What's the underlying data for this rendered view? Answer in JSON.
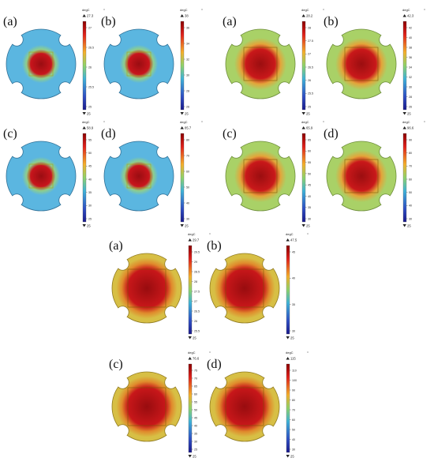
{
  "figure": {
    "unit": "degC",
    "groups": [
      {
        "id": "group-1",
        "colorScheme": "blue",
        "panels": [
          {
            "label": "(a)",
            "max": "27.3",
            "min": "25",
            "ticks": [
              "27",
              "26.5",
              "26",
              "25.5",
              "25"
            ]
          },
          {
            "label": "(b)",
            "max": "38",
            "min": "25",
            "ticks": [
              "36",
              "34",
              "32",
              "30",
              "28",
              "26"
            ]
          },
          {
            "label": "(c)",
            "max": "58.9",
            "min": "25",
            "ticks": [
              "55",
              "50",
              "45",
              "40",
              "35",
              "30",
              "25"
            ]
          },
          {
            "label": "(d)",
            "max": "85.7",
            "min": "25",
            "ticks": [
              "80",
              "70",
              "60",
              "50",
              "40",
              "30"
            ]
          }
        ]
      },
      {
        "id": "group-2",
        "colorScheme": "green",
        "panels": [
          {
            "label": "(a)",
            "max": "28.2",
            "min": "25",
            "ticks": [
              "28",
              "27.5",
              "27",
              "26.5",
              "26",
              "25.5",
              "25"
            ]
          },
          {
            "label": "(b)",
            "max": "42.3",
            "min": "25",
            "ticks": [
              "42",
              "40",
              "38",
              "36",
              "34",
              "32",
              "30",
              "28",
              "26"
            ]
          },
          {
            "label": "(c)",
            "max": "65.9",
            "min": "25",
            "ticks": [
              "65",
              "60",
              "55",
              "50",
              "45",
              "40",
              "35",
              "30"
            ]
          },
          {
            "label": "(d)",
            "max": "96.6",
            "min": "25",
            "ticks": [
              "90",
              "80",
              "70",
              "60",
              "50",
              "40",
              "30"
            ]
          }
        ]
      },
      {
        "id": "group-3",
        "colorScheme": "yellow",
        "panels": [
          {
            "label": "(a)",
            "max": "29.7",
            "min": "25",
            "ticks": [
              "29.5",
              "29",
              "28.5",
              "28",
              "27.5",
              "27",
              "26.5",
              "26",
              "25.5"
            ]
          },
          {
            "label": "(b)",
            "max": "47.5",
            "min": "25",
            "ticks": [
              "45",
              "40",
              "35",
              "30"
            ]
          },
          {
            "label": "(c)",
            "max": "76.6",
            "min": "25",
            "ticks": [
              "75",
              "70",
              "65",
              "60",
              "55",
              "50",
              "45",
              "40",
              "35",
              "30",
              "25"
            ]
          },
          {
            "label": "(d)",
            "max": "115",
            "min": "25",
            "ticks": [
              "110",
              "100",
              "90",
              "80",
              "70",
              "60",
              "50",
              "40",
              "30"
            ]
          }
        ]
      }
    ],
    "colors": {
      "blue": {
        "outer": "#5bb6e0",
        "mid": "#8fcf8a",
        "hot": "#c8151c",
        "core": "#9a0d12",
        "edge": "#2f6f96"
      },
      "green": {
        "outer": "#a9d167",
        "mid": "#e3a53a",
        "hot": "#c9181a",
        "core": "#9b0e10",
        "edge": "#6d8d3a"
      },
      "yellow": {
        "outer": "#d7bf45",
        "mid": "#e08a2c",
        "hot": "#c8171a",
        "core": "#980c0f",
        "edge": "#8f7a20"
      }
    }
  }
}
